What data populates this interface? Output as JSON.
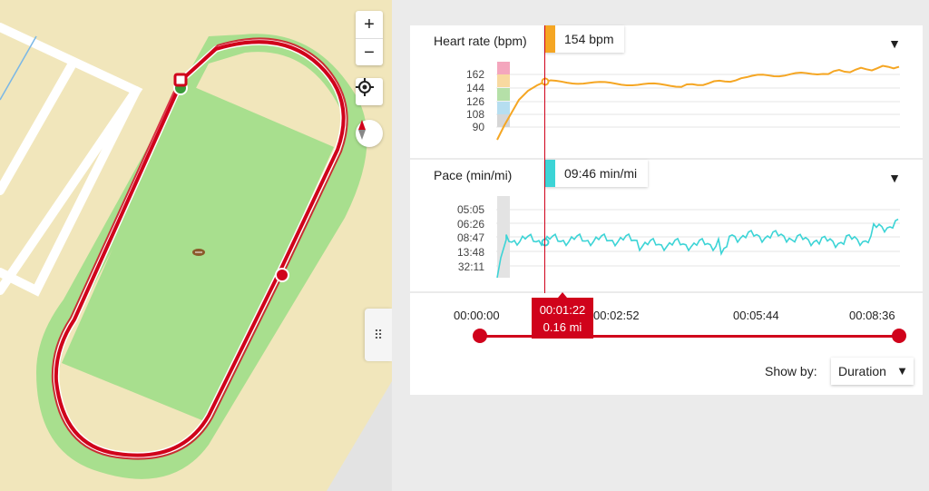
{
  "map": {
    "zoom_in": "+",
    "zoom_out": "−",
    "icons": [
      "plus-icon",
      "minus-icon",
      "locate-icon",
      "compass-icon",
      "drag-handle-icon",
      "football-icon"
    ]
  },
  "heart_rate": {
    "title": "Heart rate (bpm)",
    "current": "154 bpm",
    "zones": [
      "162",
      "144",
      "126",
      "108",
      "90"
    ],
    "zone_colors": [
      "#f4a6bd",
      "#f8d9a0",
      "#b5e0a8",
      "#b6def0",
      "#d6d6d6"
    ],
    "line_color": "#f5a623"
  },
  "pace": {
    "title": "Pace (min/mi)",
    "current": "09:46 min/mi",
    "zones": [
      "05:05",
      "06:26",
      "08:47",
      "13:48",
      "32:11"
    ],
    "line_color": "#3cd4d6"
  },
  "timeline": {
    "labels": [
      "00:00:00",
      "00:02:52",
      "00:05:44",
      "00:08:36"
    ],
    "cursor_time": "00:01:22",
    "cursor_distance": "0.16 mi",
    "progress": 0.159,
    "show_by_label": "Show by:",
    "show_by_value": "Duration"
  },
  "colors": {
    "accent": "#d0021b",
    "field": "#a8df8e",
    "sand": "#f1e6bb"
  }
}
